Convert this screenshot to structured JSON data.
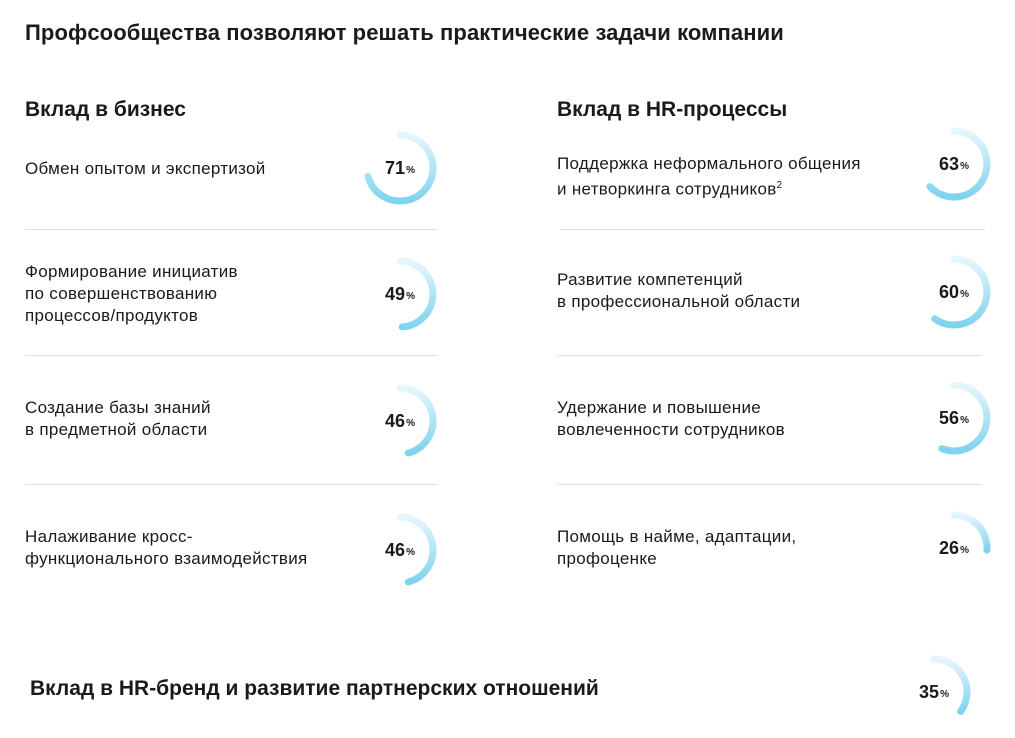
{
  "title": "Профсообщества позволяют решать практические задачи компании",
  "columns": {
    "left": {
      "heading": "Вклад в бизнес",
      "items": [
        {
          "label": "Обмен опытом и экспертизой",
          "value": 71,
          "suffix": "%"
        },
        {
          "label": "Формирование инициатив\nпо совершенствованию\nпроцессов/продуктов",
          "value": 49,
          "suffix": "%"
        },
        {
          "label": "Создание базы знаний\nв предметной области",
          "value": 46,
          "suffix": "%"
        },
        {
          "label": "Налаживание кросс-\nфункционального взаимодействия",
          "value": 46,
          "suffix": "%"
        }
      ]
    },
    "right": {
      "heading": "Вклад в HR-процессы",
      "items": [
        {
          "label": "Поддержка неформального общения\nи нетворкинга сотрудников",
          "footnote": "2",
          "value": 63,
          "suffix": "%"
        },
        {
          "label": "Развитие компетенций\nв профессиональной области",
          "value": 60,
          "suffix": "%"
        },
        {
          "label": "Удержание и повышение\nвовлеченности сотрудников",
          "value": 56,
          "suffix": "%"
        },
        {
          "label": "Помощь в найме, адаптации,\nпрофоценке",
          "value": 26,
          "suffix": "%"
        }
      ]
    }
  },
  "bottom": {
    "label": "Вклад в HR-бренд и развитие партнерских отношений",
    "value": 35,
    "suffix": "%"
  },
  "colors": {
    "ring_start": "#e6f6fc",
    "ring_end": "#7fd3ef",
    "divider": "#dcdcdc",
    "text": "#1a1a1a"
  },
  "chart_data": {
    "type": "pie",
    "title": "Профсообщества позволяют решать практические задачи компании",
    "unit": "%",
    "groups": [
      {
        "name": "Вклад в бизнес",
        "categories": [
          "Обмен опытом и экспертизой",
          "Формирование инициатив по совершенствованию процессов/продуктов",
          "Создание базы знаний в предметной области",
          "Налаживание кросс-функционального взаимодействия"
        ],
        "values": [
          71,
          49,
          46,
          46
        ]
      },
      {
        "name": "Вклад в HR-процессы",
        "categories": [
          "Поддержка неформального общения и нетворкинга сотрудников",
          "Развитие компетенций в профессиональной области",
          "Удержание и повышение вовлеченности сотрудников",
          "Помощь в найме, адаптации, профоценке"
        ],
        "values": [
          63,
          60,
          56,
          26
        ]
      },
      {
        "name": "Вклад в HR-бренд и развитие партнерских отношений",
        "categories": [
          "Вклад в HR-бренд и развитие партнерских отношений"
        ],
        "values": [
          35
        ]
      }
    ]
  }
}
